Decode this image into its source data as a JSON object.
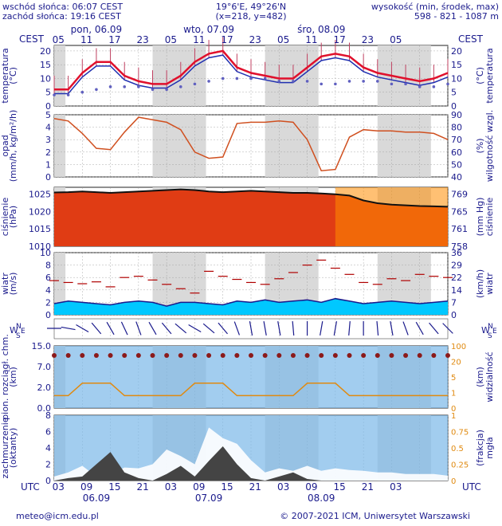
{
  "header": {
    "sunrise": "wschód słońca: 06:07 CEST",
    "sunset": "zachód słońca: 19:16 CEST",
    "coords": "19°6'E, 49°26'N",
    "grid": "(x=218, y=482)",
    "elev_label": "wysokość (min, środek, max)",
    "elev_values": "598 - 821 - 1087 m"
  },
  "time_axis": {
    "tz_top": "CEST",
    "tz_bottom": "UTC",
    "top_days": [
      "pon, 06.09",
      "wto, 07.09",
      "śro, 08.09"
    ],
    "top_hours": [
      "05",
      "11",
      "17",
      "23",
      "05",
      "11",
      "17",
      "23",
      "05",
      "11",
      "17",
      "23",
      "05"
    ],
    "bottom_hours": [
      "03",
      "09",
      "15",
      "21",
      "03",
      "09",
      "15",
      "21",
      "03",
      "09",
      "15",
      "21",
      "03"
    ],
    "bottom_days": [
      "06.09",
      "07.09",
      "08.09"
    ]
  },
  "colors": {
    "night": "#d9d9d9",
    "temp_line": "#e0102c",
    "temp_dew": "#2030b0",
    "humidity": "#d05020",
    "pressure_line": "#111111",
    "wind_fill": "#00c8ff",
    "visibility": "#e08a10",
    "cloud_low": "#444444",
    "sky": "#7ab8e8"
  },
  "panels": [
    {
      "name": "temperature",
      "left_label": "temperatura",
      "left_unit": "(°C)",
      "right_label": "temperatura",
      "right_unit": "(°C)",
      "ticks": [
        "0",
        "5",
        "10",
        "15",
        "20"
      ]
    },
    {
      "name": "precip",
      "left_label": "opad",
      "left_unit": "(mm/h, kg/m²/h)",
      "right_label": "wilgotność wzgl.",
      "right_unit": "(%)",
      "ticks_left": [
        "0",
        "1",
        "2",
        "3",
        "4",
        "5"
      ],
      "ticks_right": [
        "40",
        "50",
        "60",
        "70",
        "80",
        "90"
      ]
    },
    {
      "name": "pressure",
      "left_label": "ciśnienie",
      "left_unit": "(hPa)",
      "right_label": "ciśnienie",
      "right_unit": "(mm Hg)",
      "ticks_left": [
        "1010",
        "1015",
        "1020",
        "1025"
      ],
      "ticks_right": [
        "758",
        "761",
        "765",
        "769"
      ]
    },
    {
      "name": "wind",
      "left_label": "wiatr",
      "left_unit": "(m/s)",
      "right_label": "wiatr",
      "right_unit": "(km/h)",
      "ticks_left": [
        "0",
        "2",
        "4",
        "6",
        "8",
        "10"
      ],
      "ticks_right": [
        "0",
        "7",
        "14",
        "22",
        "29",
        "36"
      ]
    },
    {
      "name": "winddir",
      "compass": "NWSE"
    },
    {
      "name": "cloudbase",
      "left_label": "pion. rozciągł. chm.",
      "left_unit": "(km)",
      "right_label": "widzialność",
      "right_unit": "(km)",
      "ticks_left": [
        "0.0",
        "2.0",
        "7.0",
        "15.0"
      ],
      "ticks_right": [
        "0",
        "1",
        "5",
        "20",
        "100"
      ]
    },
    {
      "name": "cloud",
      "left_label": "zachmurzenie",
      "left_unit": "(oktanty)",
      "right_label": "mgła",
      "right_unit": "(frakcja)",
      "ticks_left": [
        "0",
        "2",
        "4",
        "6",
        "8"
      ],
      "ticks_right": [
        "0",
        "0.25",
        "0.5",
        "0.75",
        "1"
      ]
    }
  ],
  "chart_data": [
    {
      "type": "line",
      "name": "temperature",
      "hours_from_start_step": 3,
      "series": [
        {
          "name": "temperature",
          "values": [
            6,
            6,
            12,
            16,
            16,
            11,
            9,
            8,
            8,
            11,
            16,
            19,
            20,
            14,
            12,
            11,
            10,
            10,
            14,
            18,
            19,
            18,
            14,
            12,
            11,
            10,
            9,
            10,
            12
          ]
        },
        {
          "name": "dew point",
          "values": [
            4,
            4,
            5,
            6,
            7,
            7,
            7,
            6,
            6,
            7,
            8,
            9,
            10,
            10,
            10,
            10,
            9,
            9,
            9,
            8,
            8,
            9,
            9,
            9,
            8,
            8,
            7,
            7,
            8
          ]
        }
      ],
      "ylim": [
        0,
        22
      ]
    },
    {
      "type": "line",
      "name": "humidity",
      "values": [
        87,
        85,
        75,
        63,
        62,
        76,
        88,
        86,
        84,
        78,
        60,
        55,
        56,
        83,
        84,
        84,
        85,
        84,
        70,
        45,
        46,
        72,
        78,
        77,
        77,
        76,
        76,
        75,
        70
      ],
      "ylim": [
        40,
        90
      ]
    },
    {
      "type": "area",
      "name": "pressure",
      "values": [
        1025.5,
        1025.6,
        1025.8,
        1025.6,
        1025.4,
        1025.6,
        1025.8,
        1026.0,
        1026.2,
        1026.4,
        1026.2,
        1025.8,
        1025.6,
        1025.8,
        1026.0,
        1025.8,
        1025.6,
        1025.4,
        1025.4,
        1025.2,
        1025.0,
        1024.6,
        1023.2,
        1022.4,
        1022.0,
        1021.8,
        1021.6,
        1021.5,
        1021.4
      ],
      "ylim": [
        1010,
        1027
      ]
    },
    {
      "type": "area",
      "name": "wind",
      "series": [
        {
          "name": "mean",
          "values": [
            1.8,
            2.2,
            2.0,
            1.8,
            1.6,
            2.0,
            2.2,
            2.0,
            1.4,
            2.0,
            2.0,
            1.8,
            1.6,
            2.2,
            2.0,
            2.4,
            2.0,
            2.2,
            2.4,
            2.0,
            2.6,
            2.2,
            1.8,
            2.0,
            2.2,
            2.0,
            1.8,
            2.0,
            2.2
          ]
        },
        {
          "name": "gust",
          "values": [
            5.5,
            5.2,
            5.0,
            5.3,
            4.5,
            6.0,
            6.2,
            5.6,
            4.9,
            4.2,
            3.5,
            7.0,
            6.2,
            5.7,
            5.2,
            4.9,
            5.8,
            6.8,
            8.0,
            8.8,
            7.5,
            6.5,
            5.2,
            4.9,
            5.8,
            5.5,
            6.5,
            6.2,
            6.0
          ]
        }
      ],
      "ylim": [
        0,
        10
      ]
    },
    {
      "type": "scatter",
      "name": "winddir",
      "values_deg": [
        270,
        280,
        300,
        320,
        330,
        335,
        340,
        330,
        320,
        310,
        300,
        310,
        320,
        340,
        350,
        350,
        350,
        355,
        0,
        10,
        10,
        5,
        0,
        355,
        350,
        340,
        330,
        320,
        315
      ]
    },
    {
      "type": "line",
      "name": "visibility",
      "values": [
        3,
        3,
        6,
        6,
        6,
        3,
        3,
        3,
        3,
        3,
        6,
        6,
        6,
        3,
        3,
        3,
        3,
        3,
        6,
        6,
        6,
        3,
        3,
        3,
        3,
        3,
        3,
        3,
        3
      ],
      "ylim": [
        0,
        100
      ]
    },
    {
      "type": "area",
      "name": "cloud",
      "series": [
        {
          "name": "total",
          "values": [
            0.5,
            1,
            1.8,
            0.5,
            0.8,
            1.6,
            1.5,
            2,
            3.8,
            3,
            2,
            6.5,
            5.2,
            4.5,
            2.5,
            1,
            1.5,
            1.2,
            1.8,
            1.2,
            1.5,
            1.3,
            1.2,
            1.0,
            1.0,
            0.8,
            0.8,
            0.8,
            0.6
          ]
        },
        {
          "name": "low",
          "values": [
            0,
            0.3,
            0.5,
            2.0,
            3.5,
            1.0,
            0.3,
            0,
            0.8,
            1.8,
            0.5,
            2.4,
            4.2,
            2.0,
            0.3,
            0,
            0.5,
            1.0,
            0.2,
            0,
            0,
            0,
            0,
            0,
            0,
            0,
            0,
            0,
            0
          ]
        }
      ],
      "ylim": [
        0,
        8
      ]
    }
  ],
  "footer": {
    "email": "meteo@icm.edu.pl",
    "copyright": "© 2007-2021 ICM, Uniwersytet Warszawski"
  }
}
